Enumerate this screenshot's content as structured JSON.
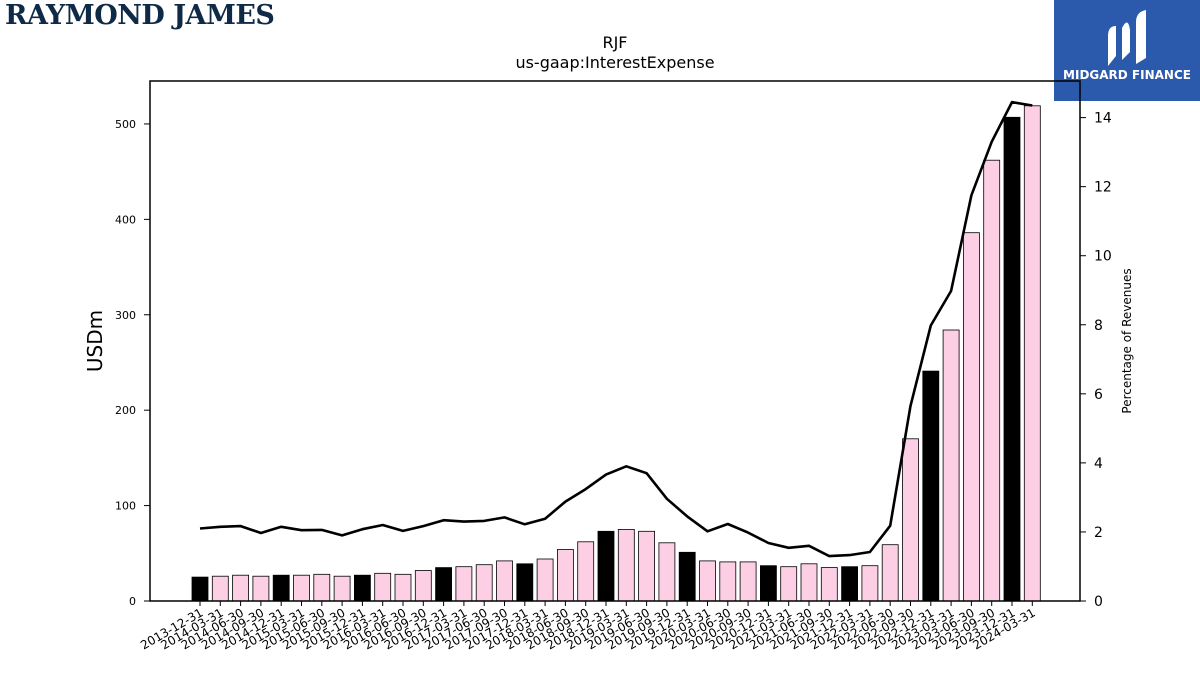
{
  "logos": {
    "left_text": "RAYMOND JAMES",
    "right_text": "MIDGARD FINANCE",
    "right_icon": "midgard-m-icon",
    "right_bg": "#2b5aad"
  },
  "chart_data": {
    "type": "bar",
    "title": "RJF",
    "subtitle": "us-gaap:InterestExpense",
    "ylabel": "USDm",
    "ylabel_right": "Percentage of Revenues",
    "ylim": [
      0,
      545
    ],
    "ylim_right": [
      0,
      15.06
    ],
    "yticks": [
      0,
      100,
      200,
      300,
      400,
      500
    ],
    "yticks_right": [
      0,
      2,
      4,
      6,
      8,
      10,
      12,
      14
    ],
    "grid": false,
    "colors": {
      "fiscal_year_end": "#000000",
      "quarter": "#fccfe4",
      "line": "#000000"
    },
    "categories": [
      "2013-12-31",
      "2014-03-31",
      "2014-06-30",
      "2014-09-30",
      "2014-12-31",
      "2015-03-31",
      "2015-06-30",
      "2015-09-30",
      "2015-12-31",
      "2016-03-31",
      "2016-06-30",
      "2016-09-30",
      "2016-12-31",
      "2017-03-31",
      "2017-06-30",
      "2017-09-30",
      "2017-12-31",
      "2018-03-31",
      "2018-06-30",
      "2018-09-30",
      "2018-12-31",
      "2019-03-31",
      "2019-06-30",
      "2019-09-30",
      "2019-12-31",
      "2020-03-31",
      "2020-06-30",
      "2020-09-30",
      "2020-12-31",
      "2021-03-31",
      "2021-06-30",
      "2021-09-30",
      "2021-12-31",
      "2022-03-31",
      "2022-06-30",
      "2022-09-30",
      "2022-12-31",
      "2023-03-31",
      "2023-06-30",
      "2023-09-30",
      "2023-12-31",
      "2024-03-31"
    ],
    "series": [
      {
        "type": "bar",
        "values": [
          25,
          26,
          27,
          26,
          27,
          27,
          28,
          26,
          27,
          29,
          28,
          32,
          35,
          36,
          38,
          42,
          39,
          44,
          54,
          62,
          73,
          75,
          73,
          61,
          51,
          42,
          41,
          41,
          37,
          36,
          39,
          35,
          36,
          37,
          59,
          170,
          241,
          284,
          386,
          462,
          507,
          519
        ],
        "highlight": [
          true,
          false,
          false,
          false,
          true,
          false,
          false,
          false,
          true,
          false,
          false,
          false,
          true,
          false,
          false,
          false,
          true,
          false,
          false,
          false,
          true,
          false,
          false,
          false,
          true,
          false,
          false,
          false,
          true,
          false,
          false,
          false,
          true,
          false,
          false,
          false,
          true,
          false,
          false,
          false,
          true,
          false
        ]
      },
      {
        "type": "line",
        "axis": "right",
        "values": [
          2.1,
          2.15,
          2.17,
          1.97,
          2.15,
          2.05,
          2.06,
          1.9,
          2.08,
          2.2,
          2.03,
          2.17,
          2.34,
          2.3,
          2.32,
          2.42,
          2.22,
          2.38,
          2.88,
          3.24,
          3.66,
          3.9,
          3.7,
          2.96,
          2.45,
          2.02,
          2.23,
          1.98,
          1.68,
          1.54,
          1.6,
          1.3,
          1.33,
          1.42,
          2.18,
          5.65,
          7.98,
          8.98,
          11.75,
          13.3,
          14.45,
          14.35
        ]
      }
    ]
  }
}
